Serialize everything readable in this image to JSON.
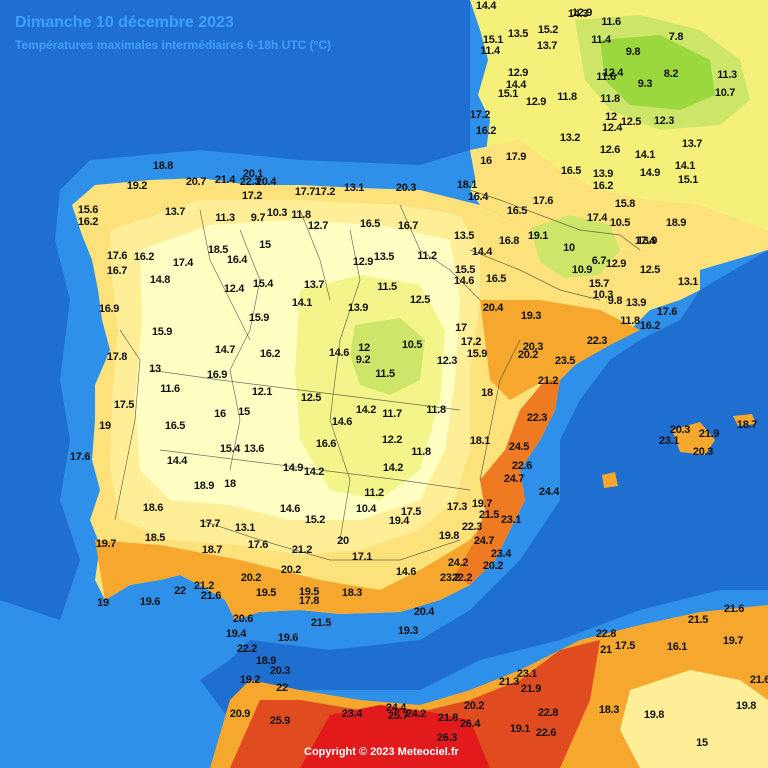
{
  "map": {
    "title": "Dimanche 10 décembre 2023",
    "subtitle": "Températures maximales intermédiaires 6-18h UTC (°C)",
    "copyright": "Copyright © 2023 Meteociel.fr"
  },
  "colors": {
    "sea_deep": "#1f6fd0",
    "sea_shelf": "#2e90e8",
    "land_15": "#ffffc4",
    "land_16": "#ffee98",
    "land_18": "#fde17a",
    "land_20": "#f5a82d",
    "land_22": "#ee7a22",
    "land_24": "#e04b1f",
    "land_26": "#e31a1c",
    "land_cool": "#f3f58a",
    "land_cold": "#cde66a",
    "land_colder": "#9ad83e",
    "borders": "#333333"
  },
  "labels": [
    {
      "t": "18.8"
    },
    {
      "t": "19.2"
    },
    {
      "t": "20.7"
    },
    {
      "t": "21.4"
    },
    {
      "t": "22.3"
    },
    {
      "t": "20.4"
    },
    {
      "t": "17.2"
    },
    {
      "t": "17.7"
    },
    {
      "t": "17.2"
    },
    {
      "t": "16.2"
    },
    {
      "t": "15.6"
    },
    {
      "t": "13.7"
    },
    {
      "t": "11.3"
    },
    {
      "t": "9.7"
    },
    {
      "t": "10.3"
    },
    {
      "t": "11.8"
    },
    {
      "t": "12.7"
    },
    {
      "t": "13.1"
    },
    {
      "t": "20.1"
    },
    {
      "t": "20.3"
    },
    {
      "t": "16.5"
    },
    {
      "t": "16.7"
    },
    {
      "t": "17.6"
    },
    {
      "t": "16.7"
    },
    {
      "t": "16.2"
    },
    {
      "t": "17.4"
    },
    {
      "t": "18.5"
    },
    {
      "t": "16.4"
    },
    {
      "t": "15"
    },
    {
      "t": "14.8"
    },
    {
      "t": "16.9"
    },
    {
      "t": "15.9"
    },
    {
      "t": "12.4"
    },
    {
      "t": "15.4"
    },
    {
      "t": "13.7"
    },
    {
      "t": "12.9"
    },
    {
      "t": "13.5"
    },
    {
      "t": "11.2"
    },
    {
      "t": "11.5"
    },
    {
      "t": "12.5"
    },
    {
      "t": "13.9"
    },
    {
      "t": "14.1"
    },
    {
      "t": "15.9"
    },
    {
      "t": "16.2"
    },
    {
      "t": "14.7"
    },
    {
      "t": "17.8"
    },
    {
      "t": "13"
    },
    {
      "t": "16.9"
    },
    {
      "t": "11.6"
    },
    {
      "t": "12.1"
    },
    {
      "t": "17.5"
    },
    {
      "t": "16"
    },
    {
      "t": "15"
    },
    {
      "t": "16.5"
    },
    {
      "t": "19"
    },
    {
      "t": "17.6"
    },
    {
      "t": "14.4"
    },
    {
      "t": "15.4"
    },
    {
      "t": "13.6"
    },
    {
      "t": "18.9"
    },
    {
      "t": "18"
    },
    {
      "t": "14.9"
    },
    {
      "t": "14.2"
    },
    {
      "t": "16.6"
    },
    {
      "t": "12.5"
    },
    {
      "t": "14.6"
    },
    {
      "t": "14.2"
    },
    {
      "t": "11.7"
    },
    {
      "t": "11.8"
    },
    {
      "t": "12.2"
    },
    {
      "t": "11.8"
    },
    {
      "t": "14.2"
    },
    {
      "t": "11.2"
    },
    {
      "t": "12"
    },
    {
      "t": "9.2"
    },
    {
      "t": "10.5"
    },
    {
      "t": "14.6"
    },
    {
      "t": "11.5"
    },
    {
      "t": "12.3"
    },
    {
      "t": "15.9"
    },
    {
      "t": "17"
    },
    {
      "t": "17.2"
    },
    {
      "t": "18"
    },
    {
      "t": "16.5"
    },
    {
      "t": "19.3"
    },
    {
      "t": "20.4"
    },
    {
      "t": "20.3"
    },
    {
      "t": "20.2"
    },
    {
      "t": "23.5"
    },
    {
      "t": "22.3"
    },
    {
      "t": "21.2"
    },
    {
      "t": "22.3"
    },
    {
      "t": "24.5"
    },
    {
      "t": "22.6"
    },
    {
      "t": "24.7"
    },
    {
      "t": "24.4"
    },
    {
      "t": "18.1"
    },
    {
      "t": "17.3"
    },
    {
      "t": "19.7"
    },
    {
      "t": "21.5"
    },
    {
      "t": "23.1"
    },
    {
      "t": "22.3"
    },
    {
      "t": "19.8"
    },
    {
      "t": "24.7"
    },
    {
      "t": "23.4"
    },
    {
      "t": "24.2"
    },
    {
      "t": "20.2"
    },
    {
      "t": "23.2"
    },
    {
      "t": "22.2"
    },
    {
      "t": "17.5"
    },
    {
      "t": "19.4"
    },
    {
      "t": "10.4"
    },
    {
      "t": "15.2"
    },
    {
      "t": "14.6"
    },
    {
      "t": "20"
    },
    {
      "t": "17.1"
    },
    {
      "t": "14.6"
    },
    {
      "t": "19.7"
    },
    {
      "t": "18.6"
    },
    {
      "t": "17.7"
    },
    {
      "t": "13.1"
    },
    {
      "t": "18.5"
    },
    {
      "t": "18.7"
    },
    {
      "t": "17.6"
    },
    {
      "t": "21.2"
    },
    {
      "t": "20.2"
    },
    {
      "t": "19.5"
    },
    {
      "t": "20.2"
    },
    {
      "t": "19.5"
    },
    {
      "t": "17.8"
    },
    {
      "t": "18.3"
    },
    {
      "t": "19"
    },
    {
      "t": "19.6"
    },
    {
      "t": "22"
    },
    {
      "t": "21.2"
    },
    {
      "t": "21.6"
    },
    {
      "t": "20.6"
    },
    {
      "t": "19.4"
    },
    {
      "t": "22.2"
    },
    {
      "t": "19.6"
    },
    {
      "t": "21.5"
    },
    {
      "t": "19.3"
    },
    {
      "t": "20.4"
    },
    {
      "t": "18.9"
    },
    {
      "t": "20.3"
    },
    {
      "t": "19.2"
    },
    {
      "t": "22"
    },
    {
      "t": "20.9"
    },
    {
      "t": "25.9"
    },
    {
      "t": "23.4"
    },
    {
      "t": "24.4"
    },
    {
      "t": "25.7"
    },
    {
      "t": "24.2"
    },
    {
      "t": "21.8"
    },
    {
      "t": "26.4"
    },
    {
      "t": "26.3"
    },
    {
      "t": "20.2"
    },
    {
      "t": "19.1"
    },
    {
      "t": "22.6"
    },
    {
      "t": "22.8"
    },
    {
      "t": "23.1"
    },
    {
      "t": "21.3"
    },
    {
      "t": "21.9"
    },
    {
      "t": "21"
    },
    {
      "t": "22.8"
    },
    {
      "t": "17.5"
    },
    {
      "t": "16.1"
    },
    {
      "t": "21.5"
    },
    {
      "t": "21.6"
    },
    {
      "t": "19.7"
    },
    {
      "t": "18.3"
    },
    {
      "t": "19.8"
    },
    {
      "t": "15"
    },
    {
      "t": "19.8"
    },
    {
      "t": "21.6"
    },
    {
      "t": "20.3"
    },
    {
      "t": "21.9"
    },
    {
      "t": "23.1"
    },
    {
      "t": "18.7"
    },
    {
      "t": "20.3"
    },
    {
      "t": "14.4"
    },
    {
      "t": "13.5"
    },
    {
      "t": "15.1"
    },
    {
      "t": "15.2"
    },
    {
      "t": "13.7"
    },
    {
      "t": "14.3"
    },
    {
      "t": "12.9"
    },
    {
      "t": "11.6"
    },
    {
      "t": "11.4"
    },
    {
      "t": "9.8"
    },
    {
      "t": "7.8"
    },
    {
      "t": "11.6"
    },
    {
      "t": "12.4"
    },
    {
      "t": "9.3"
    },
    {
      "t": "8.2"
    },
    {
      "t": "11.3"
    },
    {
      "t": "10.7"
    },
    {
      "t": "11.8"
    },
    {
      "t": "12"
    },
    {
      "t": "12.6"
    },
    {
      "t": "12.5"
    },
    {
      "t": "14.1"
    },
    {
      "t": "13.7"
    },
    {
      "t": "16.5"
    },
    {
      "t": "13.9"
    },
    {
      "t": "16.2"
    },
    {
      "t": "17.4"
    },
    {
      "t": "15.8"
    },
    {
      "t": "14.9"
    },
    {
      "t": "14.1"
    },
    {
      "t": "10.9"
    },
    {
      "t": "10"
    },
    {
      "t": "6.7"
    },
    {
      "t": "12.9"
    },
    {
      "t": "10.5"
    },
    {
      "t": "13.9"
    },
    {
      "t": "12.5"
    },
    {
      "t": "13.1"
    },
    {
      "t": "13.9"
    },
    {
      "t": "17.6"
    },
    {
      "t": "16.2"
    },
    {
      "t": "17.6"
    },
    {
      "t": "16.5"
    },
    {
      "t": "13.5"
    },
    {
      "t": "14.4"
    },
    {
      "t": "15.5"
    },
    {
      "t": "14.6"
    },
    {
      "t": "16.4"
    },
    {
      "t": "18.1"
    },
    {
      "t": "17.9"
    },
    {
      "t": "16"
    },
    {
      "t": "17.2"
    },
    {
      "t": "16.2"
    },
    {
      "t": "14.4"
    },
    {
      "t": "15.1"
    },
    {
      "t": "12.9"
    },
    {
      "t": "13.2"
    },
    {
      "t": "11.8"
    },
    {
      "t": "12.4"
    },
    {
      "t": "12.3"
    },
    {
      "t": "11.4"
    },
    {
      "t": "12.9"
    },
    {
      "t": "10.3"
    },
    {
      "t": "11.8"
    },
    {
      "t": "9.8"
    },
    {
      "t": "15.7"
    },
    {
      "t": "18.9"
    },
    {
      "t": "17.4"
    },
    {
      "t": "16.8"
    },
    {
      "t": "15.1"
    },
    {
      "t": "19.1"
    }
  ]
}
